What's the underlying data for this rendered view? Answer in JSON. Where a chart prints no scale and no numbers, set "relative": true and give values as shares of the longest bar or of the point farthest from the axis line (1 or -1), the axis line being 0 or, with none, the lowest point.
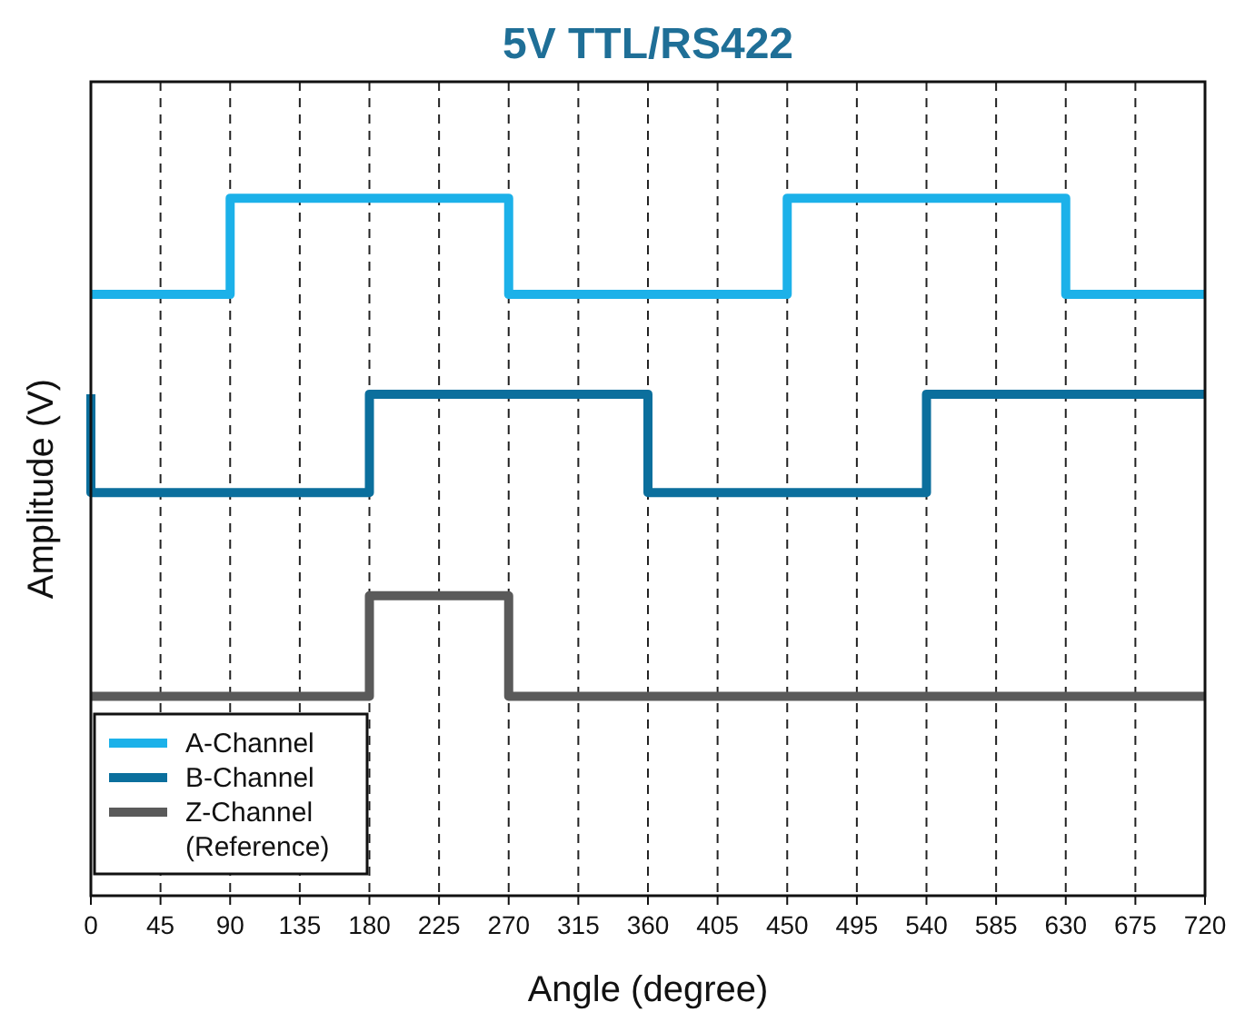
{
  "chart_data": {
    "type": "step",
    "title": "5V TTL/RS422",
    "xlabel": "Angle (degree)",
    "ylabel": "Amplitude (V)",
    "relative": true,
    "xlim": [
      0,
      720
    ],
    "xticks": [
      0,
      45,
      90,
      135,
      180,
      225,
      270,
      315,
      360,
      405,
      450,
      495,
      540,
      585,
      630,
      675,
      720
    ],
    "grid": "x",
    "legend": "bottom left",
    "series": [
      {
        "name": "A-Channel",
        "color": "#1cb1e9",
        "x": [
          0,
          90,
          270,
          450,
          630,
          720
        ],
        "values": [
          0.862,
          1,
          0.862,
          1,
          0.862,
          0.862
        ]
      },
      {
        "name": "B-Channel",
        "color": "#0b6f9d",
        "x": [
          0,
          0,
          180,
          360,
          540,
          720
        ],
        "values": [
          0.719,
          0.578,
          0.719,
          0.578,
          0.719,
          0.719
        ]
      },
      {
        "name": "Z-Channel (Reference)",
        "color": "#5a5a5a",
        "x": [
          0,
          180,
          270,
          720
        ],
        "values": [
          0.286,
          0.43,
          0.286,
          0.286
        ]
      }
    ]
  }
}
